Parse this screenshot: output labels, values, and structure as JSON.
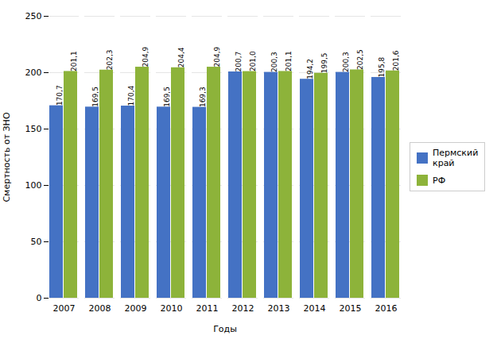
{
  "chart_data": {
    "type": "bar",
    "xlabel": "Годы",
    "ylabel": "Смертность от ЗНО",
    "categories": [
      "2007",
      "2008",
      "2009",
      "2010",
      "2011",
      "2012",
      "2013",
      "2014",
      "2015",
      "2016"
    ],
    "series": [
      {
        "name": "Пермский\nкрай",
        "color": "#4472C4",
        "values": [
          170.7,
          169.5,
          170.4,
          169.5,
          169.3,
          200.7,
          200.3,
          194.2,
          200.3,
          195.8
        ],
        "value_labels": [
          "170,7",
          "169,5",
          "170,4",
          "169,5",
          "169,3",
          "200,7",
          "200,3",
          "194,2",
          "200,3",
          "195,8"
        ]
      },
      {
        "name": "РФ",
        "color": "#8DB33A",
        "values": [
          201.1,
          202.3,
          204.9,
          204.4,
          204.9,
          201.0,
          201.1,
          199.5,
          202.5,
          201.6
        ],
        "value_labels": [
          "201,1",
          "202,3",
          "204,9",
          "204,4",
          "204,9",
          "201,0",
          "201,1",
          "199,5",
          "202,5",
          "201,6"
        ]
      }
    ],
    "ylim": [
      0,
      250
    ],
    "yticks": [
      0,
      50,
      100,
      150,
      200,
      250
    ],
    "grid": true,
    "legend": "right",
    "data_labels": true
  }
}
